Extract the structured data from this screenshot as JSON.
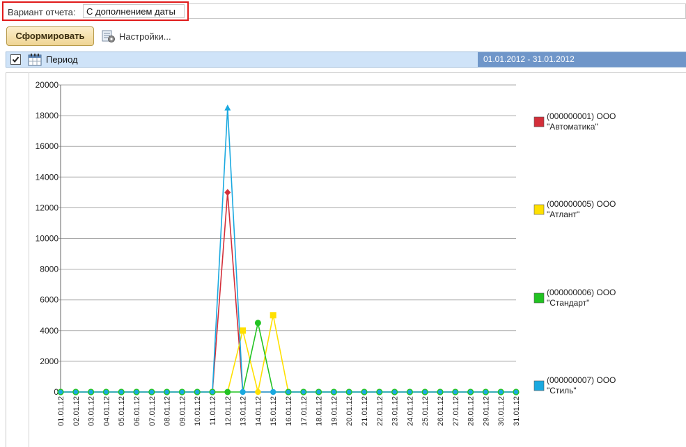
{
  "report": {
    "variant_label": "Вариант отчета:",
    "variant_value": "С дополнением даты",
    "generate_label": "Сформировать",
    "settings_label": "Настройки...",
    "period_label": "Период",
    "period_value": "01.01.2012 - 31.01.2012"
  },
  "icons": {
    "settings": "settings-gear-icon",
    "calendar": "calendar-icon",
    "checkbox": "checkbox-checked-icon"
  },
  "chart_data": {
    "type": "line",
    "title": "",
    "xlabel": "",
    "ylabel": "",
    "ylim": [
      0,
      20000
    ],
    "yticks": [
      0,
      2000,
      4000,
      6000,
      8000,
      10000,
      12000,
      14000,
      16000,
      18000,
      20000
    ],
    "categories": [
      "01.01.12",
      "02.01.12",
      "03.01.12",
      "04.01.12",
      "05.01.12",
      "06.01.12",
      "07.01.12",
      "08.01.12",
      "09.01.12",
      "10.01.12",
      "11.01.12",
      "12.01.12",
      "13.01.12",
      "14.01.12",
      "15.01.12",
      "16.01.12",
      "17.01.12",
      "18.01.12",
      "19.01.12",
      "20.01.12",
      "21.01.12",
      "22.01.12",
      "23.01.12",
      "24.01.12",
      "25.01.12",
      "26.01.12",
      "27.01.12",
      "28.01.12",
      "29.01.12",
      "30.01.12",
      "31.01.12"
    ],
    "series": [
      {
        "name": "(000000001) ООО \"Автоматика\"",
        "legend_lines": [
          "(000000001) ООО",
          "\"Автоматика\""
        ],
        "color": "#d32f3a",
        "marker": "diamond",
        "values": [
          0,
          0,
          0,
          0,
          0,
          0,
          0,
          0,
          0,
          0,
          0,
          13000,
          0,
          0,
          0,
          0,
          0,
          0,
          0,
          0,
          0,
          0,
          0,
          0,
          0,
          0,
          0,
          0,
          0,
          0,
          0
        ]
      },
      {
        "name": "(000000005) ООО \"Атлант\"",
        "legend_lines": [
          "(000000005) ООО",
          "\"Атлант\""
        ],
        "color": "#ffe000",
        "marker": "square",
        "values": [
          0,
          0,
          0,
          0,
          0,
          0,
          0,
          0,
          0,
          0,
          0,
          0,
          4000,
          0,
          5000,
          0,
          0,
          0,
          0,
          0,
          0,
          0,
          0,
          0,
          0,
          0,
          0,
          0,
          0,
          0,
          0
        ]
      },
      {
        "name": "(000000006) ООО \"Стандарт\"",
        "legend_lines": [
          "(000000006) ООО",
          "\"Стандарт\""
        ],
        "color": "#22c322",
        "marker": "circle",
        "values": [
          0,
          0,
          0,
          0,
          0,
          0,
          0,
          0,
          0,
          0,
          0,
          0,
          0,
          4500,
          0,
          0,
          0,
          0,
          0,
          0,
          0,
          0,
          0,
          0,
          0,
          0,
          0,
          0,
          0,
          0,
          0
        ]
      },
      {
        "name": "(000000007) ООО \"Стиль\"",
        "legend_lines": [
          "(000000007) ООО",
          "\"Стиль\""
        ],
        "color": "#1aa9e0",
        "marker": "triangle",
        "values": [
          0,
          0,
          0,
          0,
          0,
          0,
          0,
          0,
          0,
          0,
          0,
          18500,
          0,
          0,
          0,
          0,
          0,
          0,
          0,
          0,
          0,
          0,
          0,
          0,
          0,
          0,
          0,
          0,
          0,
          0,
          0
        ]
      }
    ],
    "legend_position": "right",
    "grid": true
  }
}
